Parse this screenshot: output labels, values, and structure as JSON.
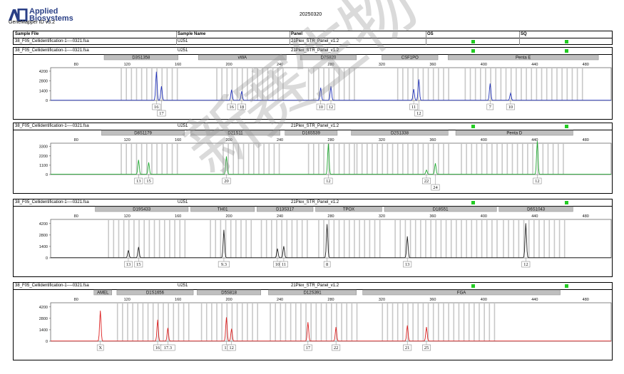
{
  "header": {
    "brand_name": "Applied Biosystems",
    "brand_line1": "Applied",
    "brand_line2": "Biosystems",
    "software": "GeneMapper ID v3.2",
    "date": "20250320",
    "columns": [
      "Sample File",
      "Sample Name",
      "Panel",
      "OS",
      "SQ"
    ],
    "sample_file": "38_F05_Cellidentification-1----0321.fsa",
    "sample_name": "U251",
    "panel_name": "21Plex_STR_Panel_v1.2"
  },
  "colors": {
    "blue": "#2233bb",
    "green": "#22aa33",
    "black": "#222222",
    "red": "#dd2222",
    "quality": "#22cc22"
  },
  "watermark": "新赛生物",
  "panels": [
    {
      "sample_file": "38_F05_Cellidentification-1----0321.fsa",
      "sample_name": "U251",
      "panel_name": "21Plex_STR_Panel_v1.2",
      "dye": "blue",
      "y_ticks": [
        "4200",
        "2800",
        "1400",
        "0"
      ],
      "x_ticks": [
        "80",
        "120",
        "160",
        "200",
        "240",
        "280",
        "320",
        "360",
        "400",
        "440",
        "480"
      ],
      "markers": [
        {
          "name": "D3S1358",
          "start": 102,
          "end": 160
        },
        {
          "name": "vWA",
          "start": 176,
          "end": 245
        },
        {
          "name": "D7S820",
          "start": 256,
          "end": 300
        },
        {
          "name": "CSF1PO",
          "start": 320,
          "end": 364
        },
        {
          "name": "Penta E",
          "start": 372,
          "end": 490
        }
      ],
      "allele_windows": [
        [
          115,
          160
        ],
        [
          190,
          245
        ],
        [
          262,
          300
        ],
        [
          332,
          372
        ],
        [
          385,
          480
        ]
      ],
      "peaks": [
        {
          "x": 143,
          "h": 4100,
          "label": "16"
        },
        {
          "x": 147,
          "h": 2000,
          "label": "17"
        },
        {
          "x": 202,
          "h": 1500,
          "label": "16"
        },
        {
          "x": 210,
          "h": 1300,
          "label": "18"
        },
        {
          "x": 272,
          "h": 1800,
          "label": "10"
        },
        {
          "x": 280,
          "h": 2000,
          "label": "12"
        },
        {
          "x": 345,
          "h": 1600,
          "label": "11"
        },
        {
          "x": 349,
          "h": 3000,
          "label": "12"
        },
        {
          "x": 405,
          "h": 2400,
          "label": "7"
        },
        {
          "x": 421,
          "h": 1000,
          "label": "10"
        }
      ]
    },
    {
      "sample_file": "38_F05_Cellidentification-1----0321.fsa",
      "sample_name": "U251",
      "panel_name": "21Plex_STR_Panel_v1.2",
      "dye": "green",
      "y_ticks": [
        "3300",
        "2200",
        "1100",
        "0"
      ],
      "x_ticks": [
        "80",
        "120",
        "160",
        "200",
        "240",
        "280",
        "320",
        "360",
        "400",
        "440",
        "480"
      ],
      "markers": [
        {
          "name": "D8S1179",
          "start": 100,
          "end": 165
        },
        {
          "name": "D21S11",
          "start": 170,
          "end": 240
        },
        {
          "name": "D16S539",
          "start": 244,
          "end": 285
        },
        {
          "name": "D2S1338",
          "start": 296,
          "end": 372
        },
        {
          "name": "Penta D",
          "start": 378,
          "end": 470
        }
      ],
      "allele_windows": [
        [
          115,
          160
        ],
        [
          195,
          240
        ],
        [
          262,
          300
        ],
        [
          300,
          372
        ],
        [
          382,
          465
        ]
      ],
      "peaks": [
        {
          "x": 129,
          "h": 1700,
          "label": "13"
        },
        {
          "x": 137,
          "h": 1400,
          "label": "15"
        },
        {
          "x": 198,
          "h": 2100,
          "label": "20"
        },
        {
          "x": 278,
          "h": 3600,
          "label": "12"
        },
        {
          "x": 355,
          "h": 500,
          "label": "22"
        },
        {
          "x": 362,
          "h": 1300,
          "label": "24"
        },
        {
          "x": 442,
          "h": 3900,
          "label": "12"
        }
      ]
    },
    {
      "sample_file": "38_F05_Cellidentification-1----0321.fsa",
      "sample_name": "U251",
      "panel_name": "21Plex_STR_Panel_v1.2",
      "dye": "black",
      "y_ticks": [
        "4200",
        "2800",
        "1400",
        "0"
      ],
      "x_ticks": [
        "80",
        "120",
        "160",
        "200",
        "240",
        "280",
        "320",
        "360",
        "400",
        "440",
        "480"
      ],
      "markers": [
        {
          "name": "D19S433",
          "start": 95,
          "end": 168
        },
        {
          "name": "TH01",
          "start": 170,
          "end": 220
        },
        {
          "name": "D13S317",
          "start": 222,
          "end": 266
        },
        {
          "name": "TPOX",
          "start": 268,
          "end": 320
        },
        {
          "name": "D18S51",
          "start": 322,
          "end": 410
        },
        {
          "name": "D6S1043",
          "start": 412,
          "end": 470
        }
      ],
      "allele_windows": [
        [
          105,
          165
        ],
        [
          185,
          220
        ],
        [
          225,
          262
        ],
        [
          270,
          320
        ],
        [
          330,
          410
        ],
        [
          415,
          465
        ]
      ],
      "peaks": [
        {
          "x": 121,
          "h": 900,
          "label": "13"
        },
        {
          "x": 129,
          "h": 1300,
          "label": "15"
        },
        {
          "x": 196,
          "h": 3400,
          "label": "9.3"
        },
        {
          "x": 238,
          "h": 1100,
          "label": "10"
        },
        {
          "x": 243,
          "h": 1400,
          "label": "11"
        },
        {
          "x": 277,
          "h": 4100,
          "label": "8"
        },
        {
          "x": 340,
          "h": 2600,
          "label": "13"
        },
        {
          "x": 433,
          "h": 4200,
          "label": "12"
        }
      ]
    },
    {
      "sample_file": "38_F05_Cellidentification-1----0321.fsa",
      "sample_name": "U251",
      "panel_name": "21Plex_STR_Panel_v1.2",
      "dye": "red",
      "y_ticks": [
        "4200",
        "2800",
        "1400",
        "0"
      ],
      "x_ticks": [
        "80",
        "120",
        "160",
        "200",
        "240",
        "280",
        "320",
        "360",
        "400",
        "440",
        "480"
      ],
      "markers": [
        {
          "name": "AMEL",
          "start": 94,
          "end": 108
        },
        {
          "name": "D1S1656",
          "start": 112,
          "end": 172
        },
        {
          "name": "D5S818",
          "start": 175,
          "end": 225
        },
        {
          "name": "D12S391",
          "start": 231,
          "end": 300
        },
        {
          "name": "FGA",
          "start": 305,
          "end": 460
        }
      ],
      "allele_windows": [
        [
          112,
          170
        ],
        [
          178,
          225
        ],
        [
          232,
          300
        ],
        [
          320,
          410
        ]
      ],
      "peaks": [
        {
          "x": 99,
          "h": 3700,
          "label": "X"
        },
        {
          "x": 144,
          "h": 2600,
          "label": "16"
        },
        {
          "x": 152,
          "h": 1600,
          "label": "17.3"
        },
        {
          "x": 198,
          "h": 2900,
          "label": "11"
        },
        {
          "x": 202,
          "h": 1500,
          "label": "12"
        },
        {
          "x": 262,
          "h": 2300,
          "label": "17"
        },
        {
          "x": 284,
          "h": 1700,
          "label": "22"
        },
        {
          "x": 340,
          "h": 1900,
          "label": "21"
        },
        {
          "x": 355,
          "h": 1700,
          "label": "25"
        }
      ]
    }
  ]
}
